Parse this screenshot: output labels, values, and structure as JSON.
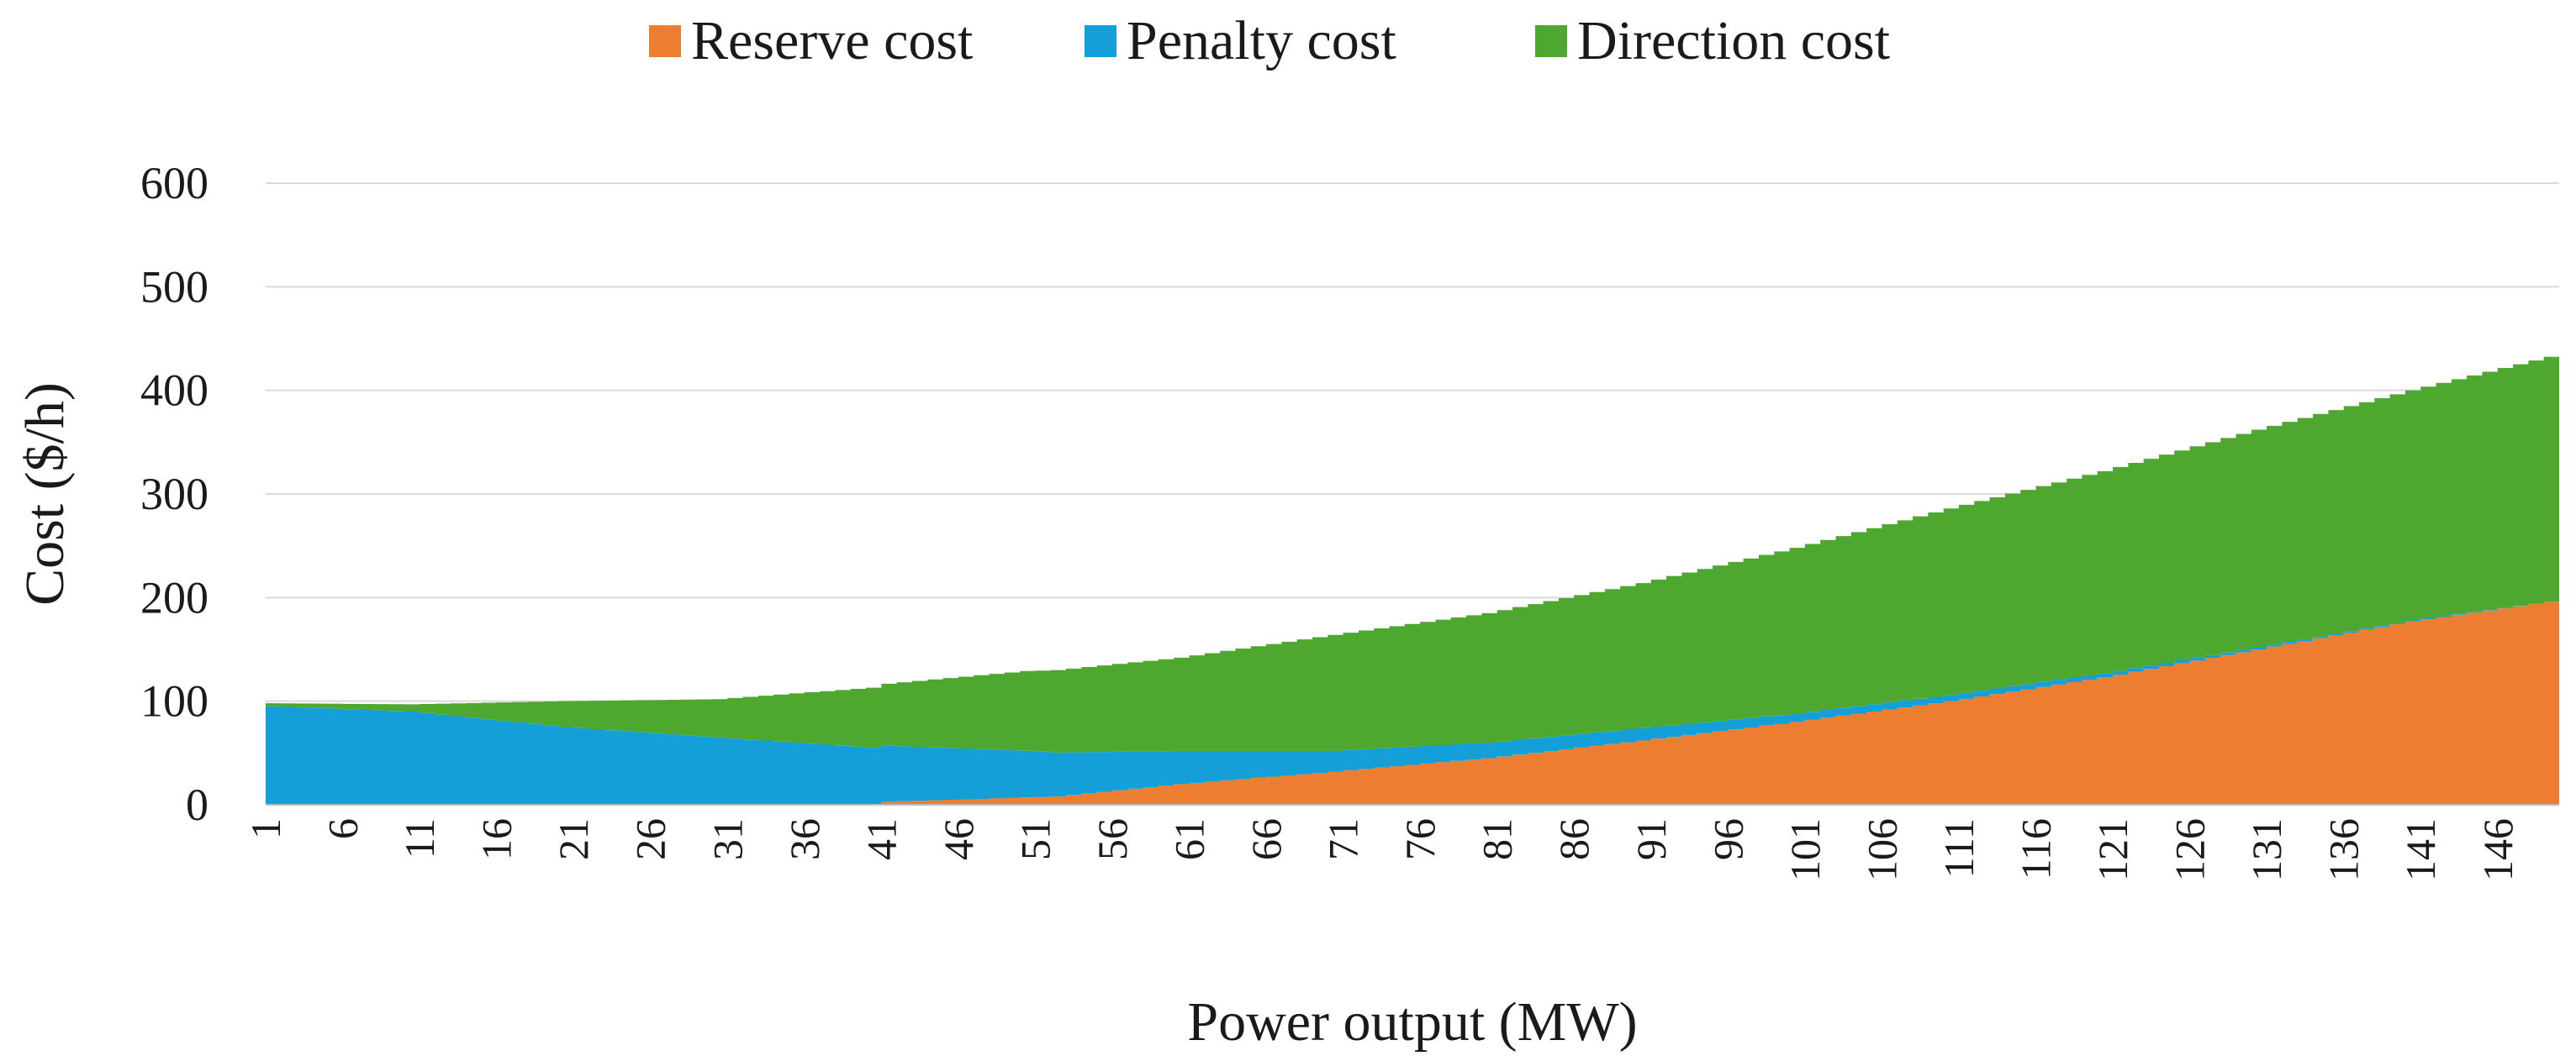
{
  "chart_data": {
    "type": "area",
    "stacked": true,
    "title": "",
    "xlabel": "Power output (MW)",
    "ylabel": "Cost ($/h)",
    "ylim": [
      0,
      600
    ],
    "yticks": [
      0,
      100,
      200,
      300,
      400,
      500,
      600
    ],
    "xlim": [
      1,
      150
    ],
    "xtick_start": 1,
    "xtick_step": 5,
    "xtick_labels": [
      "1",
      "6",
      "11",
      "16",
      "21",
      "26",
      "31",
      "36",
      "41",
      "46",
      "51",
      "56",
      "61",
      "66",
      "71",
      "76",
      "81",
      "86",
      "91",
      "96",
      "101",
      "106",
      "111",
      "116",
      "121",
      "126",
      "131",
      "136",
      "141",
      "146"
    ],
    "grid": "horizontal",
    "legend_position": "top",
    "series": [
      {
        "name": "Reserve cost",
        "color": "#ed7d31",
        "x": [
          1,
          40,
          41,
          52,
          60,
          70,
          80,
          90,
          100,
          110,
          120,
          130,
          140,
          150
        ],
        "values": [
          0,
          0,
          3,
          8,
          20,
          32,
          45,
          62,
          80,
          100,
          123,
          150,
          177,
          198
        ]
      },
      {
        "name": "Penalty cost",
        "color": "#159fd9",
        "x": [
          1,
          10,
          20,
          30,
          40,
          50,
          60,
          70,
          80,
          90,
          100,
          110,
          120,
          130,
          140,
          150
        ],
        "values": [
          95,
          90,
          75,
          65,
          55,
          45,
          32,
          20,
          15,
          12,
          8,
          6,
          4,
          2,
          1,
          0
        ]
      },
      {
        "name": "Direction cost",
        "color": "#4ea72e",
        "x": [
          1,
          10,
          20,
          30,
          40,
          50,
          60,
          70,
          80,
          90,
          100,
          110,
          120,
          130,
          140,
          150
        ],
        "values": [
          3,
          7,
          25,
          37,
          58,
          77,
          90,
          112,
          125,
          140,
          160,
          180,
          195,
          210,
          222,
          238
        ]
      }
    ]
  }
}
